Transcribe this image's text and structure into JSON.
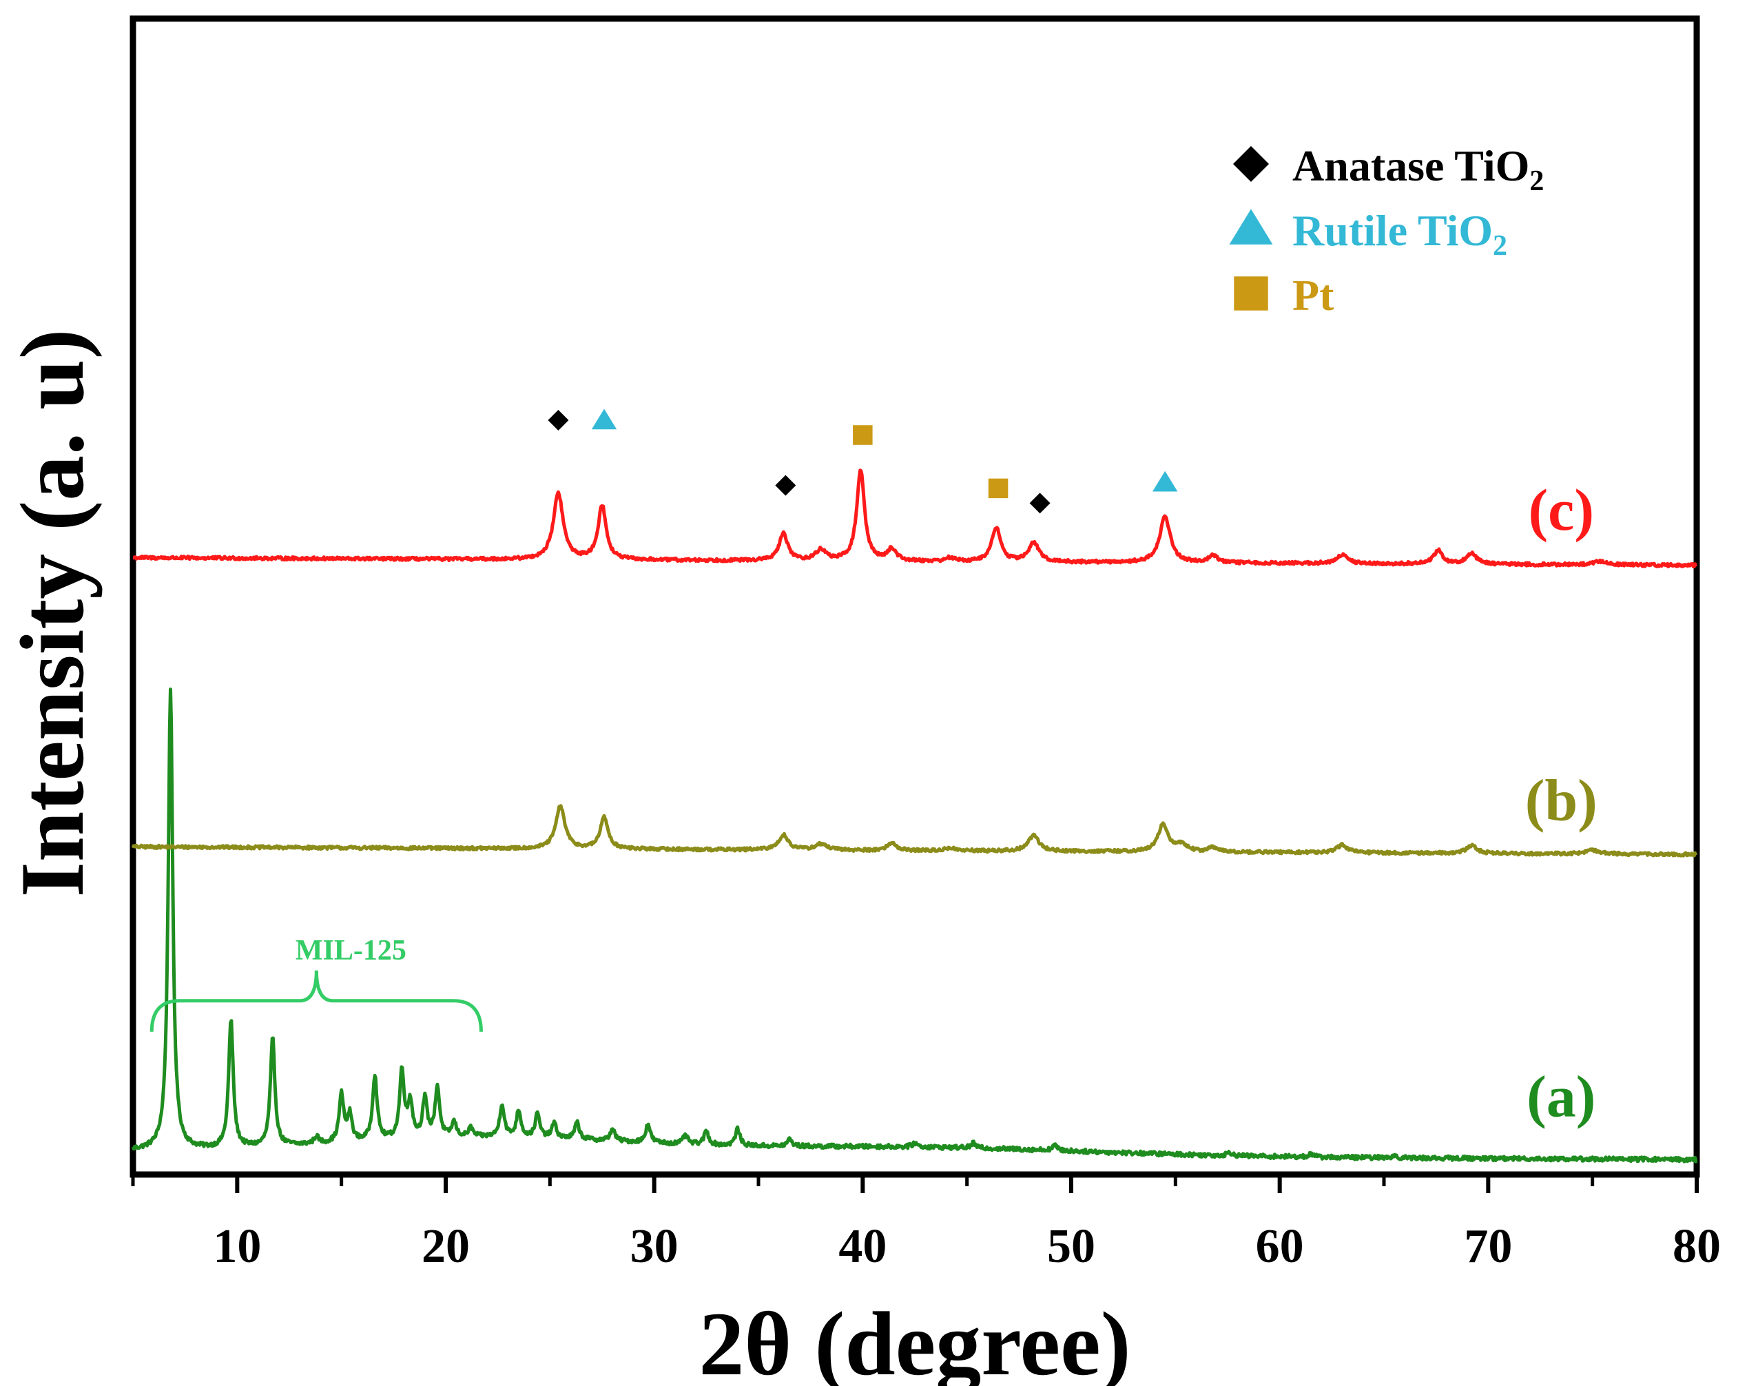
{
  "chart_data": {
    "type": "line",
    "title": "",
    "xlabel": "2θ (degree)",
    "ylabel": "Intensity (a. u)",
    "xlim": [
      5,
      80
    ],
    "ylim": [
      0,
      100
    ],
    "x_ticks": [
      10,
      20,
      30,
      40,
      50,
      60,
      70,
      80
    ],
    "x_tick_labels": [
      "10",
      "20",
      "30",
      "40",
      "50",
      "60",
      "70",
      "80"
    ],
    "grid": false,
    "legend_position": "top-right",
    "colors": {
      "a": "#1f8c1f",
      "b": "#8c8c1a",
      "c": "#ff1a1a",
      "anatase": "#000000",
      "rutile": "#33b8d6",
      "pt": "#cc9914",
      "mil_bracket": "#33cc66"
    },
    "legend": [
      {
        "marker": "diamond",
        "name": "Anatase TiO",
        "sub": "2",
        "color": "#000000"
      },
      {
        "marker": "triangle",
        "name": "Rutile TiO",
        "sub": "2",
        "color": "#33b8d6"
      },
      {
        "marker": "square",
        "name": "Pt",
        "sub": "",
        "color": "#cc9914"
      }
    ],
    "series": [
      {
        "name": "(a)",
        "color": "#1f8c1f",
        "baseline_start": 1.6,
        "baseline_end": 0.2,
        "noise": 0.35,
        "peaks": [
          {
            "x": 6.8,
            "h": 78,
            "w": 0.13
          },
          {
            "x": 9.7,
            "h": 21.5,
            "w": 0.13
          },
          {
            "x": 11.7,
            "h": 18.2,
            "w": 0.13
          },
          {
            "x": 13.8,
            "h": 1.2,
            "w": 0.13
          },
          {
            "x": 15.0,
            "h": 8.0,
            "w": 0.13
          },
          {
            "x": 15.4,
            "h": 4.5,
            "w": 0.13
          },
          {
            "x": 16.6,
            "h": 11.0,
            "w": 0.13
          },
          {
            "x": 17.9,
            "h": 11.5,
            "w": 0.13
          },
          {
            "x": 18.3,
            "h": 6.0,
            "w": 0.13
          },
          {
            "x": 19.0,
            "h": 6.5,
            "w": 0.13
          },
          {
            "x": 19.6,
            "h": 8.5,
            "w": 0.13
          },
          {
            "x": 20.4,
            "h": 2.5,
            "w": 0.13
          },
          {
            "x": 21.2,
            "h": 1.5,
            "w": 0.13
          },
          {
            "x": 22.7,
            "h": 5.5,
            "w": 0.13
          },
          {
            "x": 23.5,
            "h": 4.5,
            "w": 0.13
          },
          {
            "x": 24.4,
            "h": 4.0,
            "w": 0.13
          },
          {
            "x": 25.2,
            "h": 2.5,
            "w": 0.13
          },
          {
            "x": 26.3,
            "h": 2.8,
            "w": 0.13
          },
          {
            "x": 28.0,
            "h": 2.0,
            "w": 0.13
          },
          {
            "x": 29.7,
            "h": 3.2,
            "w": 0.13
          },
          {
            "x": 31.5,
            "h": 1.5,
            "w": 0.13
          },
          {
            "x": 32.5,
            "h": 2.3,
            "w": 0.13
          },
          {
            "x": 34.0,
            "h": 2.8,
            "w": 0.13
          },
          {
            "x": 36.5,
            "h": 1.2,
            "w": 0.13
          },
          {
            "x": 42.5,
            "h": 0.7,
            "w": 0.13
          },
          {
            "x": 45.3,
            "h": 0.8,
            "w": 0.13
          },
          {
            "x": 49.2,
            "h": 0.9,
            "w": 0.13
          },
          {
            "x": 57.6,
            "h": 0.6,
            "w": 0.13
          },
          {
            "x": 61.5,
            "h": 0.5,
            "w": 0.13
          },
          {
            "x": 65.5,
            "h": 0.4,
            "w": 0.13
          }
        ]
      },
      {
        "name": "(b)",
        "color": "#8c8c1a",
        "baseline_start": 53.0,
        "baseline_end": 51.7,
        "noise": 0.25,
        "peaks": [
          {
            "x": 25.5,
            "h": 7.2,
            "w": 0.26
          },
          {
            "x": 27.6,
            "h": 5.3,
            "w": 0.23
          },
          {
            "x": 36.2,
            "h": 2.5,
            "w": 0.28
          },
          {
            "x": 38.0,
            "h": 1.0,
            "w": 0.35
          },
          {
            "x": 41.4,
            "h": 1.3,
            "w": 0.25
          },
          {
            "x": 44.2,
            "h": 0.5,
            "w": 0.25
          },
          {
            "x": 48.2,
            "h": 2.7,
            "w": 0.3
          },
          {
            "x": 54.4,
            "h": 4.6,
            "w": 0.28
          },
          {
            "x": 55.3,
            "h": 1.3,
            "w": 0.3
          },
          {
            "x": 56.8,
            "h": 0.8,
            "w": 0.25
          },
          {
            "x": 63.0,
            "h": 1.3,
            "w": 0.3
          },
          {
            "x": 69.2,
            "h": 1.3,
            "w": 0.3
          },
          {
            "x": 75.0,
            "h": 0.6,
            "w": 0.4
          }
        ]
      },
      {
        "name": "(c)",
        "color": "#ff1a1a",
        "baseline_start": 101.8,
        "baseline_end": 100.5,
        "noise": 0.25,
        "peaks": [
          {
            "x": 25.4,
            "h": 11.2,
            "w": 0.28
          },
          {
            "x": 27.5,
            "h": 9.2,
            "w": 0.23
          },
          {
            "x": 36.2,
            "h": 4.5,
            "w": 0.25
          },
          {
            "x": 38.0,
            "h": 1.8,
            "w": 0.3
          },
          {
            "x": 39.9,
            "h": 15.4,
            "w": 0.22
          },
          {
            "x": 41.4,
            "h": 2.0,
            "w": 0.25
          },
          {
            "x": 44.2,
            "h": 0.6,
            "w": 0.25
          },
          {
            "x": 46.4,
            "h": 5.8,
            "w": 0.25
          },
          {
            "x": 48.2,
            "h": 3.2,
            "w": 0.3
          },
          {
            "x": 54.5,
            "h": 7.8,
            "w": 0.3
          },
          {
            "x": 56.8,
            "h": 1.3,
            "w": 0.25
          },
          {
            "x": 63.0,
            "h": 1.5,
            "w": 0.3
          },
          {
            "x": 67.6,
            "h": 2.3,
            "w": 0.25
          },
          {
            "x": 69.2,
            "h": 1.8,
            "w": 0.3
          },
          {
            "x": 75.4,
            "h": 0.6,
            "w": 0.4
          }
        ]
      }
    ],
    "series_labels": [
      {
        "text": "(a)",
        "series": 0,
        "x": 73.5,
        "y": 7.5,
        "color": "#1f8c1f"
      },
      {
        "text": "(b)",
        "series": 1,
        "x": 73.5,
        "y": 57.5,
        "color": "#8c8c1a"
      },
      {
        "text": "(c)",
        "series": 2,
        "x": 73.5,
        "y": 106.5,
        "color": "#ff1a1a"
      }
    ],
    "peak_markers": [
      {
        "type": "anatase",
        "x": 25.4,
        "y": 125.0
      },
      {
        "type": "rutile",
        "x": 27.6,
        "y": 125.0
      },
      {
        "type": "anatase",
        "x": 36.3,
        "y": 114.0
      },
      {
        "type": "pt",
        "x": 40.0,
        "y": 122.5
      },
      {
        "type": "pt",
        "x": 46.5,
        "y": 113.5
      },
      {
        "type": "anatase",
        "x": 48.5,
        "y": 111.0
      },
      {
        "type": "rutile",
        "x": 54.5,
        "y": 114.5
      }
    ],
    "annotations": [
      {
        "text": "MIL-125",
        "x_start": 5.9,
        "x_end": 21.7,
        "y": 27.0,
        "color": "#33cc66"
      }
    ]
  }
}
